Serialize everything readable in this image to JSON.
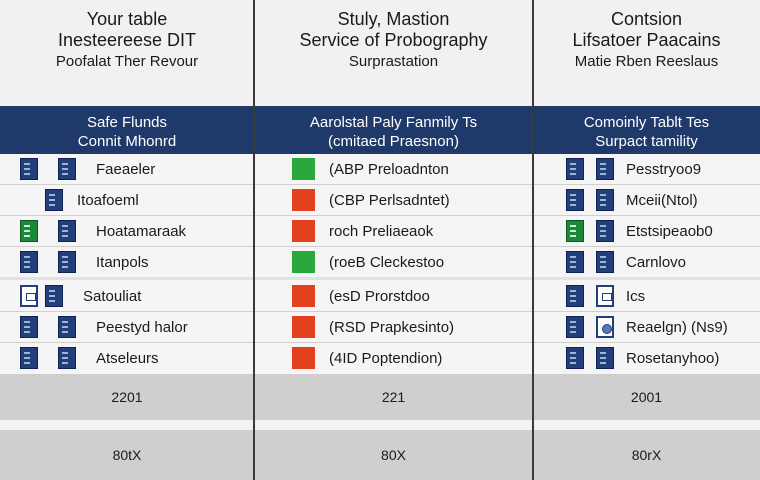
{
  "colors": {
    "header_band": "#1f3a6a",
    "header_bg": "#f1f1f1",
    "rows_bg": "#f5f5f5",
    "footer_bg": "#cfcfcf",
    "green": "#2aa83c",
    "red": "#e2401e"
  },
  "columns": [
    {
      "header": [
        "Your table",
        "Inesteereese DIT",
        "Poofalat Ther Revour"
      ],
      "band": [
        "Safe Flunds",
        "Connit Mhonrd"
      ],
      "rows": [
        {
          "icons": [
            "doc-icon",
            "doc-icon"
          ],
          "label": "Faeaeler"
        },
        {
          "icons": [
            "doc-icon"
          ],
          "label": "Itoafoeml"
        },
        {
          "icons": [
            "doc-icon-green",
            "doc-icon"
          ],
          "label": "Hoatamaraak"
        },
        {
          "icons": [
            "doc-icon",
            "doc-icon"
          ],
          "label": "Itanpols"
        },
        {
          "icons": [
            "frame-icon",
            "doc-icon"
          ],
          "label": "Satouliat"
        },
        {
          "icons": [
            "doc-icon",
            "doc-icon"
          ],
          "label": "Peestyd halor"
        },
        {
          "icons": [
            "doc-icon",
            "doc-icon"
          ],
          "label": "Atseleurs"
        }
      ],
      "footer1": "2201",
      "footer2": "80tX"
    },
    {
      "header": [
        "Stuly, Mastion",
        "Service of Probography",
        "Surprastation"
      ],
      "band": [
        "Aarolstal Paly Fanmily Ts",
        "(cmitaed Praesnon)"
      ],
      "rows": [
        {
          "square": "green",
          "label": "(ABP Preloadnton"
        },
        {
          "square": "red",
          "label": "(CBP Perlsadntet)"
        },
        {
          "square": "red",
          "label": "roch Preliaeaok"
        },
        {
          "square": "green",
          "label": "(roeB Cleckestoo"
        },
        {
          "square": "red",
          "label": "(esD Prorstdoo"
        },
        {
          "square": "red",
          "label": "(RSD Prapkesinto)"
        },
        {
          "square": "red",
          "label": "(4ID Poptendion)"
        }
      ],
      "footer1": "221",
      "footer2": "80X"
    },
    {
      "header": [
        "Contsion",
        "Lifsatoer Paacains",
        "Matie Rben Reeslaus"
      ],
      "band": [
        "Comoinly Tablt Tes",
        "Surpact tamility"
      ],
      "rows": [
        {
          "icons": [
            "doc-icon",
            "doc-icon"
          ],
          "label": "Pesstryoo9"
        },
        {
          "icons": [
            "doc-icon",
            "doc-icon"
          ],
          "label": "Mceii(Ntol)"
        },
        {
          "icons": [
            "doc-icon-green",
            "doc-icon"
          ],
          "label": "Etstsipeaob0"
        },
        {
          "icons": [
            "doc-icon",
            "doc-icon"
          ],
          "label": "Carnlovo"
        },
        {
          "icons": [
            "doc-icon",
            "frame-icon"
          ],
          "label": "Ics"
        },
        {
          "icons": [
            "doc-icon",
            "frame-round-icon"
          ],
          "label": "Reaelgn) (Ns9)"
        },
        {
          "icons": [
            "doc-icon",
            "doc-icon"
          ],
          "label": "Rosetanyhoo)"
        }
      ],
      "footer1": "2001",
      "footer2": "80rX"
    }
  ]
}
